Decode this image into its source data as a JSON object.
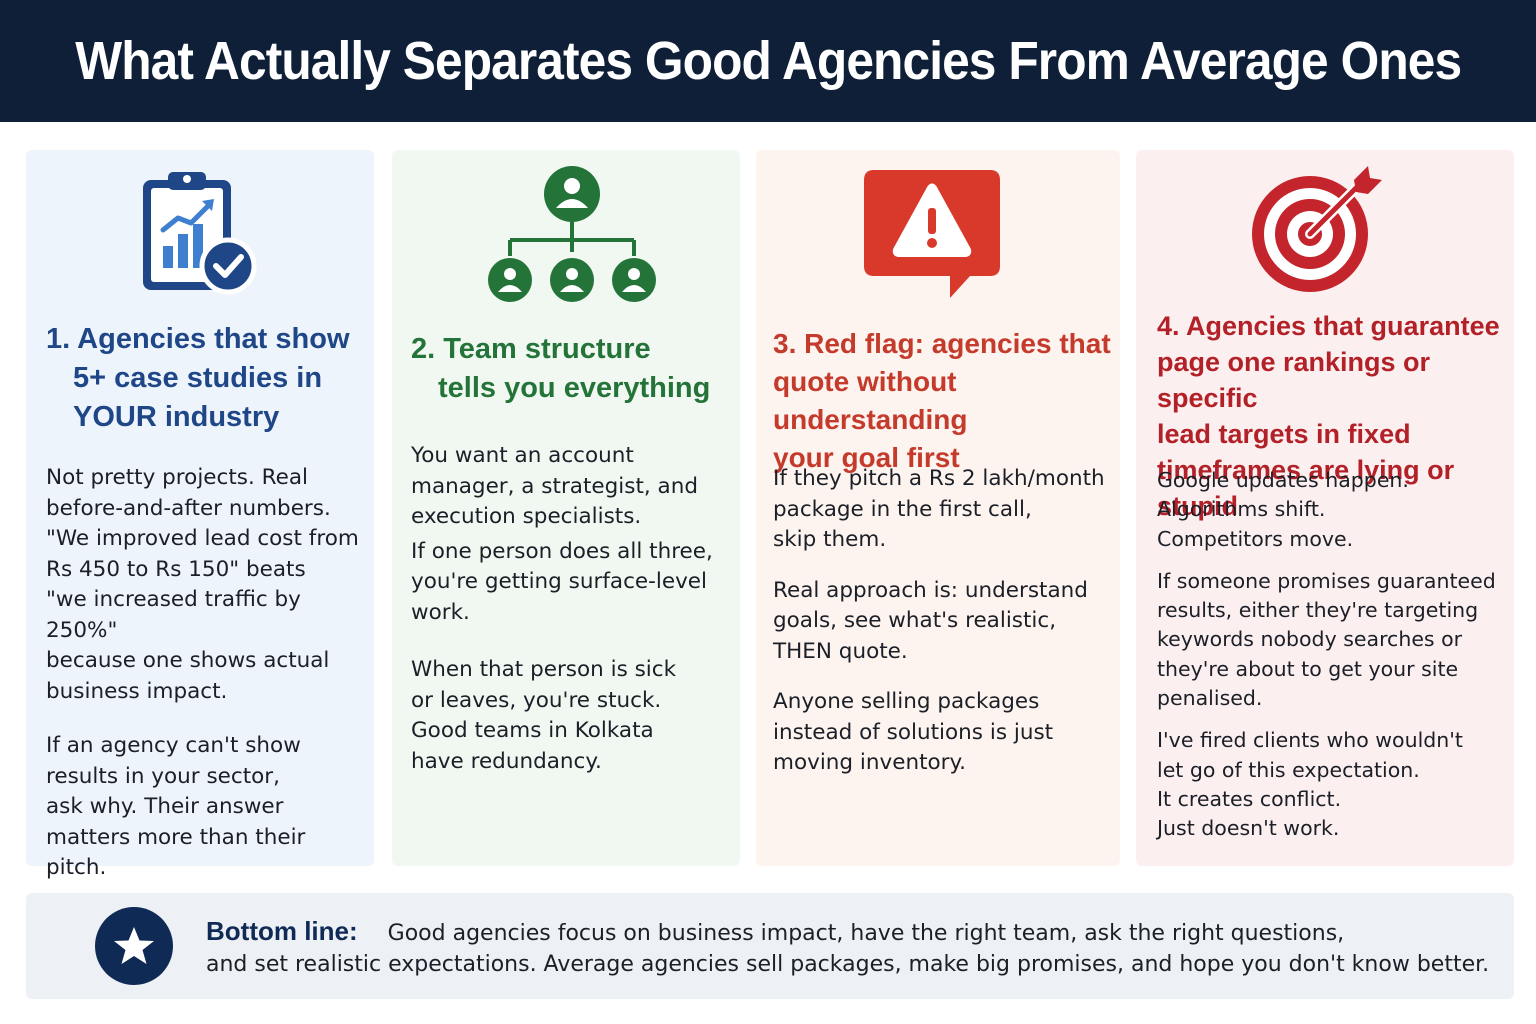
{
  "title": "What Actually Separates Good Agencies From Average Ones",
  "cards": [
    {
      "icon": "clipboard-chart-check-icon",
      "heading_line1": "1. Agencies that show",
      "heading_line2": "5+ case studies in",
      "heading_line3": "YOUR industry",
      "paragraphs": [
        "Not pretty projects. Real\nbefore-and-after numbers.\n\"We improved lead cost from\nRs 450 to Rs 150\" beats\n\"we increased traffic by 250%\"\nbecause one shows actual\nbusiness impact.",
        "If an agency can't show\nresults in your sector,\nask why. Their answer\nmatters more than their pitch."
      ]
    },
    {
      "icon": "team-hierarchy-icon",
      "heading_line1": "2. Team structure",
      "heading_line2": "tells you everything",
      "paragraphs": [
        "You want an account\nmanager, a strategist, and\nexecution specialists.",
        "If one person does all three,\nyou're getting surface-level\nwork.",
        "When that person is sick\nor leaves, you're stuck.\nGood teams in Kolkata\nhave redundancy."
      ]
    },
    {
      "icon": "warning-speech-bubble-icon",
      "heading_line1": "3. Red flag: agencies that",
      "heading_line2": "quote without understanding",
      "heading_line3": "your goal first",
      "paragraphs": [
        "If they pitch a Rs 2 lakh/month\npackage in the first call,\nskip them.",
        "Real approach is: understand\ngoals, see what's realistic,\nTHEN quote.",
        "Anyone selling packages\ninstead of solutions is just\nmoving inventory."
      ]
    },
    {
      "icon": "target-arrow-icon",
      "heading_line1": "4. Agencies that guarantee",
      "heading_line2": "page one rankings or specific",
      "heading_line3": "lead targets in fixed",
      "heading_line4": "timeframes are lying or stupid",
      "paragraphs": [
        "Google updates happen.\nAlgorithms shift.\nCompetitors move.",
        "If someone promises guaranteed\nresults, either they're targeting\nkeywords nobody searches or\nthey're about to get your site\npenalised.",
        "I've fired clients who wouldn't\nlet go of this expectation.\nIt creates conflict.\nJust doesn't work."
      ]
    }
  ],
  "footer": {
    "icon": "star-icon",
    "lead": "Bottom line:",
    "text_line1": "Good agencies focus on business impact, have the right team, ask the right questions,",
    "text_line2": "and set realistic expectations. Average agencies sell packages, make big promises, and hope you don't know better."
  },
  "colors": {
    "header_bg": "#0f1f38",
    "blue": "#1f4788",
    "green": "#24743a",
    "orange_red": "#c43a2b",
    "red": "#b32128"
  }
}
